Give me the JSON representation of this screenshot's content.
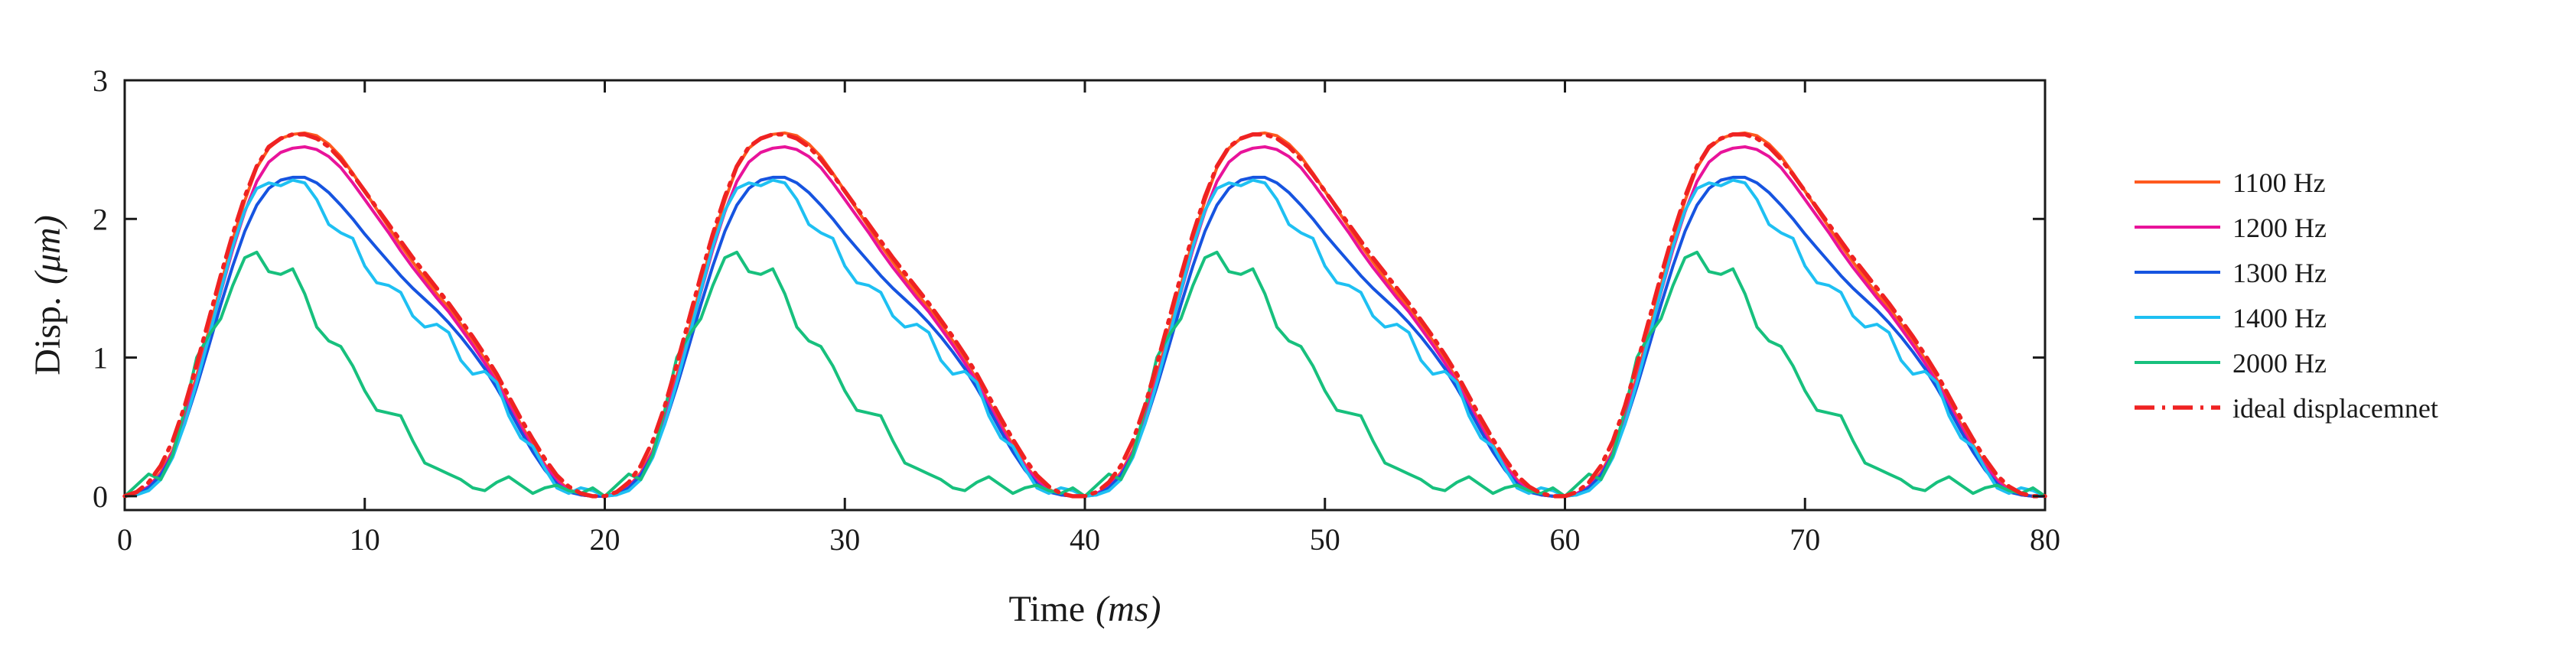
{
  "chart_data": {
    "type": "line",
    "title": "",
    "xlabel": "Time",
    "xlabel_unit": "(ms)",
    "ylabel": "Disp.",
    "ylabel_unit": "(μm)",
    "xlim": [
      0,
      80
    ],
    "ylim": [
      -0.1,
      3
    ],
    "xticks": [
      0,
      10,
      20,
      30,
      40,
      50,
      60,
      70,
      80
    ],
    "yticks": [
      0,
      1,
      2,
      3
    ],
    "grid": false,
    "legend_position": "outside-right",
    "period_ms": 20,
    "periods_shown": 4,
    "series": [
      {
        "name": "1100 Hz",
        "color": "#ff5a1f",
        "style": "solid",
        "x": [
          0,
          0.5,
          1,
          1.5,
          2,
          2.5,
          3,
          3.5,
          4,
          4.5,
          5,
          5.5,
          6,
          6.5,
          7,
          7.5,
          8,
          8.5,
          9,
          9.5,
          10,
          10.5,
          11,
          11.5,
          12,
          12.5,
          13,
          13.5,
          14,
          14.5,
          15,
          15.5,
          16,
          16.5,
          17,
          17.5,
          18,
          18.5,
          19,
          19.5,
          20
        ],
        "y": [
          0.0,
          0.02,
          0.07,
          0.17,
          0.33,
          0.58,
          0.87,
          1.19,
          1.52,
          1.85,
          2.13,
          2.37,
          2.51,
          2.58,
          2.61,
          2.62,
          2.6,
          2.54,
          2.45,
          2.33,
          2.2,
          2.07,
          1.94,
          1.81,
          1.69,
          1.57,
          1.46,
          1.36,
          1.24,
          1.12,
          0.99,
          0.84,
          0.68,
          0.52,
          0.37,
          0.23,
          0.12,
          0.05,
          0.01,
          0.0,
          0.0
        ]
      },
      {
        "name": "1200 Hz",
        "color": "#e8139a",
        "style": "solid",
        "x": [
          0,
          0.5,
          1,
          1.5,
          2,
          2.5,
          3,
          3.5,
          4,
          4.5,
          5,
          5.5,
          6,
          6.5,
          7,
          7.5,
          8,
          8.5,
          9,
          9.5,
          10,
          10.5,
          11,
          11.5,
          12,
          12.5,
          13,
          13.5,
          14,
          14.5,
          15,
          15.5,
          16,
          16.5,
          17,
          17.5,
          18,
          18.5,
          19,
          19.5,
          20
        ],
        "y": [
          0.0,
          0.02,
          0.07,
          0.16,
          0.32,
          0.56,
          0.84,
          1.15,
          1.47,
          1.78,
          2.05,
          2.27,
          2.41,
          2.48,
          2.51,
          2.52,
          2.5,
          2.45,
          2.37,
          2.26,
          2.14,
          2.02,
          1.9,
          1.77,
          1.65,
          1.54,
          1.43,
          1.33,
          1.21,
          1.09,
          0.96,
          0.82,
          0.66,
          0.5,
          0.35,
          0.22,
          0.11,
          0.04,
          0.01,
          0.0,
          0.0
        ]
      },
      {
        "name": "1300 Hz",
        "color": "#1654e0",
        "style": "solid",
        "x": [
          0,
          0.5,
          1,
          1.5,
          2,
          2.5,
          3,
          3.5,
          4,
          4.5,
          5,
          5.5,
          6,
          6.5,
          7,
          7.5,
          8,
          8.5,
          9,
          9.5,
          10,
          10.5,
          11,
          11.5,
          12,
          12.5,
          13,
          13.5,
          14,
          14.5,
          15,
          15.5,
          16,
          16.5,
          17,
          17.5,
          18,
          18.5,
          19,
          19.5,
          20
        ],
        "y": [
          0.0,
          0.01,
          0.06,
          0.15,
          0.3,
          0.52,
          0.79,
          1.08,
          1.38,
          1.66,
          1.91,
          2.1,
          2.22,
          2.28,
          2.3,
          2.3,
          2.26,
          2.19,
          2.1,
          2.0,
          1.89,
          1.79,
          1.69,
          1.59,
          1.5,
          1.42,
          1.34,
          1.25,
          1.15,
          1.04,
          0.92,
          0.78,
          0.63,
          0.47,
          0.32,
          0.19,
          0.09,
          0.03,
          0.01,
          0.0,
          0.0
        ]
      },
      {
        "name": "1400 Hz",
        "color": "#1ec0f2",
        "style": "solid",
        "x": [
          0,
          0.5,
          1,
          1.5,
          2,
          2.5,
          3,
          3.5,
          4,
          4.5,
          5,
          5.5,
          6,
          6.5,
          7,
          7.5,
          8,
          8.5,
          9,
          9.5,
          10,
          10.5,
          11,
          11.5,
          12,
          12.5,
          13,
          13.5,
          14,
          14.5,
          15,
          15.5,
          16,
          16.5,
          17,
          17.5,
          18,
          18.5,
          19,
          19.5,
          20
        ],
        "y": [
          0.0,
          0.01,
          0.04,
          0.12,
          0.28,
          0.52,
          0.82,
          1.14,
          1.48,
          1.8,
          2.06,
          2.22,
          2.26,
          2.24,
          2.28,
          2.26,
          2.14,
          1.96,
          1.9,
          1.86,
          1.66,
          1.54,
          1.52,
          1.47,
          1.3,
          1.22,
          1.24,
          1.18,
          0.98,
          0.88,
          0.9,
          0.82,
          0.58,
          0.42,
          0.36,
          0.2,
          0.06,
          0.02,
          0.06,
          0.04,
          0.0
        ]
      },
      {
        "name": "2000 Hz",
        "color": "#17c07d",
        "style": "solid",
        "x": [
          0,
          0.5,
          1,
          1.5,
          2,
          2.5,
          3,
          3.5,
          4,
          4.5,
          5,
          5.5,
          6,
          6.5,
          7,
          7.5,
          8,
          8.5,
          9,
          9.5,
          10,
          10.5,
          11,
          11.5,
          12,
          12.5,
          13,
          13.5,
          14,
          14.5,
          15,
          15.5,
          16,
          16.5,
          17,
          17.5,
          18,
          18.5,
          19,
          19.5,
          20
        ],
        "y": [
          0.0,
          0.08,
          0.16,
          0.12,
          0.3,
          0.62,
          1.0,
          1.16,
          1.28,
          1.52,
          1.72,
          1.76,
          1.62,
          1.6,
          1.64,
          1.46,
          1.22,
          1.12,
          1.08,
          0.94,
          0.76,
          0.62,
          0.6,
          0.58,
          0.4,
          0.24,
          0.2,
          0.16,
          0.12,
          0.06,
          0.04,
          0.1,
          0.14,
          0.08,
          0.02,
          0.06,
          0.08,
          0.04,
          0.02,
          0.06,
          0.0
        ]
      },
      {
        "name": "ideal displacemnet",
        "color": "#ef2222",
        "style": "dash-dot",
        "x": [
          0,
          0.5,
          1,
          1.5,
          2,
          2.5,
          3,
          3.5,
          4,
          4.5,
          5,
          5.5,
          6,
          6.5,
          7,
          7.5,
          8,
          8.5,
          9,
          9.5,
          10,
          10.5,
          11,
          11.5,
          12,
          12.5,
          13,
          13.5,
          14,
          14.5,
          15,
          15.5,
          16,
          16.5,
          17,
          17.5,
          18,
          18.5,
          19,
          19.5,
          20
        ],
        "y": [
          0.0,
          0.03,
          0.1,
          0.22,
          0.4,
          0.65,
          0.95,
          1.27,
          1.59,
          1.89,
          2.16,
          2.38,
          2.52,
          2.58,
          2.61,
          2.61,
          2.58,
          2.52,
          2.43,
          2.32,
          2.2,
          2.08,
          1.96,
          1.84,
          1.72,
          1.61,
          1.5,
          1.39,
          1.27,
          1.15,
          1.02,
          0.88,
          0.72,
          0.56,
          0.41,
          0.27,
          0.15,
          0.07,
          0.02,
          0.0,
          0.0
        ]
      }
    ]
  }
}
